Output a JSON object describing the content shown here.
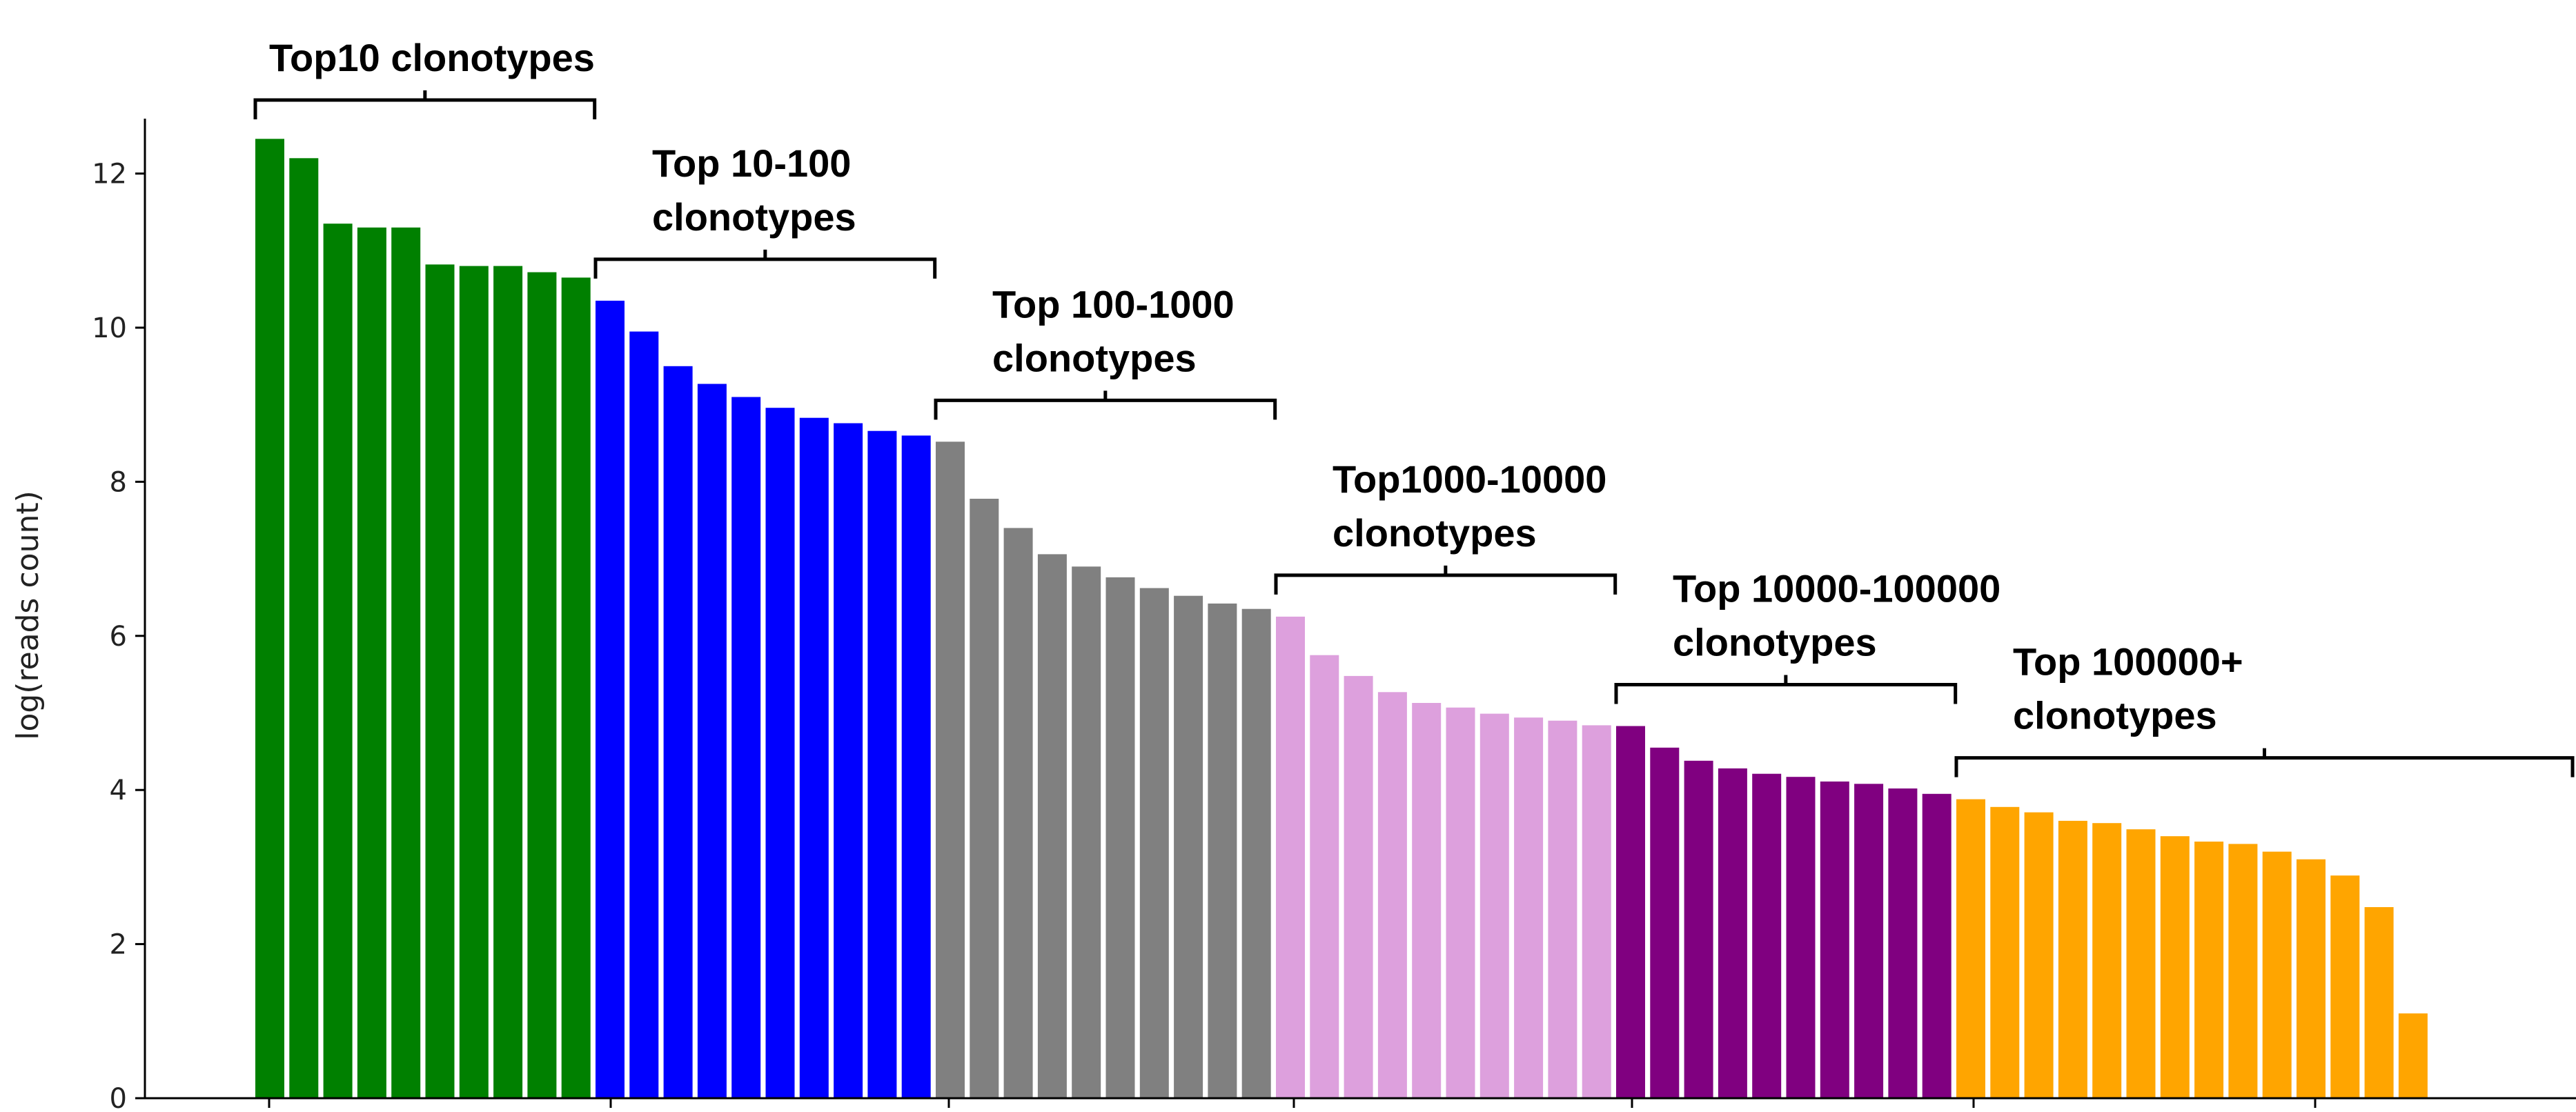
{
  "chart_data": {
    "type": "bar",
    "xlabel": "",
    "ylabel": "log(reads count)",
    "ylim": [
      0,
      12.7
    ],
    "yticks": [
      0,
      2,
      4,
      6,
      8,
      10,
      12
    ],
    "grid": false,
    "legend": "none",
    "groups": [
      {
        "label_lines": [
          "Top10 clonotypes"
        ],
        "color": "#008000",
        "values": [
          12.45,
          12.2,
          11.35,
          11.3,
          11.3,
          10.82,
          10.8,
          10.8,
          10.72,
          10.65
        ]
      },
      {
        "label_lines": [
          "Top 10-100",
          "clonotypes"
        ],
        "color": "#0000ff",
        "values": [
          10.35,
          9.95,
          9.5,
          9.27,
          9.1,
          8.96,
          8.83,
          8.76,
          8.66,
          8.6
        ]
      },
      {
        "label_lines": [
          "Top 100-1000",
          "clonotypes"
        ],
        "color": "#808080",
        "values": [
          8.52,
          7.78,
          7.4,
          7.06,
          6.9,
          6.76,
          6.62,
          6.52,
          6.42,
          6.35
        ]
      },
      {
        "label_lines": [
          "Top1000-10000",
          "clonotypes"
        ],
        "color": "#dda0dd",
        "values": [
          6.25,
          5.75,
          5.48,
          5.27,
          5.13,
          5.07,
          4.99,
          4.94,
          4.9,
          4.84
        ]
      },
      {
        "label_lines": [
          "Top 10000-100000",
          "clonotypes"
        ],
        "color": "#800080",
        "values": [
          4.83,
          4.55,
          4.38,
          4.28,
          4.21,
          4.17,
          4.11,
          4.08,
          4.02,
          3.95
        ]
      },
      {
        "label_lines": [
          "Top 100000+",
          "clonotypes"
        ],
        "color": "#ffa500",
        "values": [
          3.88,
          3.78,
          3.71,
          3.6,
          3.57,
          3.49,
          3.4,
          3.33,
          3.3,
          3.2,
          3.1,
          2.89,
          2.48,
          1.1
        ]
      }
    ]
  }
}
